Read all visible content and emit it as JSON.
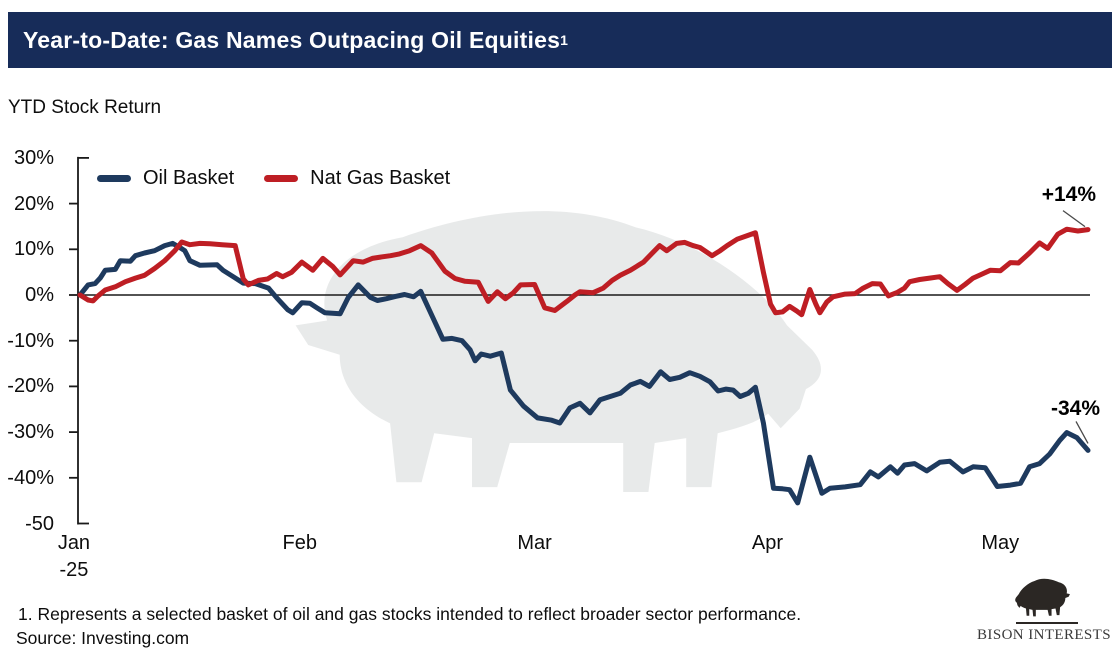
{
  "header": {
    "title": "Year-to-Date: Gas Names Outpacing Oil Equities",
    "superscript": "1",
    "bg_color": "#172c59"
  },
  "subtitle": "YTD Stock Return",
  "footnotes": [
    "1. Represents a selected basket of oil and gas stocks intended to reflect broader sector performance.",
    "Source: Investing.com"
  ],
  "logo": {
    "name": "BISON INTERESTS",
    "icon": "bison-icon"
  },
  "chart_data": {
    "type": "line",
    "title": "YTD Stock Return",
    "xlabel": "",
    "ylabel": "YTD Stock Return (%)",
    "ylim": [
      -50,
      30
    ],
    "grid": false,
    "legend_position": "top-left",
    "y_axis": {
      "ticks": [
        {
          "v": 30,
          "label": "30%"
        },
        {
          "v": 20,
          "label": "20%"
        },
        {
          "v": 10,
          "label": "10%"
        },
        {
          "v": 0,
          "label": "0%"
        },
        {
          "v": -10,
          "label": "-10%"
        },
        {
          "v": -20,
          "label": "-20%"
        },
        {
          "v": -30,
          "label": "-30%"
        },
        {
          "v": -40,
          "label": "-40%"
        },
        {
          "v": -50,
          "label": "-50"
        }
      ]
    },
    "x_axis": {
      "unit": "fraction of Jan 2 2025 to mid-May 2025",
      "ticks": [
        {
          "label": "Jan",
          "sub": "-25",
          "f": -0.006
        },
        {
          "label": "Feb",
          "f": 0.218
        },
        {
          "label": "Mar",
          "f": 0.451
        },
        {
          "label": "Apr",
          "f": 0.682
        },
        {
          "label": "May",
          "f": 0.913
        }
      ]
    },
    "series": [
      {
        "name": "Oil Basket",
        "color": "#1e3a5e",
        "end_label": "-34%",
        "points": [
          [
            0,
            0
          ],
          [
            0.008,
            2.2
          ],
          [
            0.015,
            2.5
          ],
          [
            0.02,
            3.7
          ],
          [
            0.025,
            5.4
          ],
          [
            0.035,
            5.6
          ],
          [
            0.04,
            7.5
          ],
          [
            0.05,
            7.4
          ],
          [
            0.055,
            8.6
          ],
          [
            0.064,
            9.2
          ],
          [
            0.074,
            9.7
          ],
          [
            0.084,
            10.8
          ],
          [
            0.092,
            11.3
          ],
          [
            0.099,
            10.4
          ],
          [
            0.104,
            9.7
          ],
          [
            0.109,
            7.5
          ],
          [
            0.119,
            6.5
          ],
          [
            0.136,
            6.6
          ],
          [
            0.142,
            5.4
          ],
          [
            0.152,
            4.0
          ],
          [
            0.162,
            2.6
          ],
          [
            0.174,
            2.5
          ],
          [
            0.187,
            1.5
          ],
          [
            0.195,
            -0.6
          ],
          [
            0.206,
            -3.2
          ],
          [
            0.211,
            -3.9
          ],
          [
            0.22,
            -1.7
          ],
          [
            0.228,
            -1.8
          ],
          [
            0.235,
            -2.8
          ],
          [
            0.243,
            -3.9
          ],
          [
            0.258,
            -4.1
          ],
          [
            0.266,
            -0.6
          ],
          [
            0.276,
            2.2
          ],
          [
            0.288,
            -0.5
          ],
          [
            0.295,
            -1.2
          ],
          [
            0.304,
            -0.8
          ],
          [
            0.313,
            -0.3
          ],
          [
            0.322,
            0.1
          ],
          [
            0.331,
            -0.4
          ],
          [
            0.338,
            0.8
          ],
          [
            0.347,
            -3.5
          ],
          [
            0.36,
            -9.7
          ],
          [
            0.369,
            -9.5
          ],
          [
            0.379,
            -10.0
          ],
          [
            0.387,
            -12.0
          ],
          [
            0.392,
            -14.4
          ],
          [
            0.398,
            -12.9
          ],
          [
            0.407,
            -13.4
          ],
          [
            0.418,
            -12.7
          ],
          [
            0.427,
            -20.8
          ],
          [
            0.44,
            -24.3
          ],
          [
            0.454,
            -26.9
          ],
          [
            0.468,
            -27.4
          ],
          [
            0.476,
            -28.0
          ],
          [
            0.486,
            -24.7
          ],
          [
            0.496,
            -23.7
          ],
          [
            0.506,
            -25.8
          ],
          [
            0.516,
            -22.9
          ],
          [
            0.526,
            -22.2
          ],
          [
            0.536,
            -21.5
          ],
          [
            0.546,
            -19.7
          ],
          [
            0.556,
            -18.9
          ],
          [
            0.565,
            -20.0
          ],
          [
            0.576,
            -16.8
          ],
          [
            0.585,
            -18.5
          ],
          [
            0.595,
            -18.0
          ],
          [
            0.605,
            -17.0
          ],
          [
            0.615,
            -17.8
          ],
          [
            0.625,
            -19.0
          ],
          [
            0.633,
            -21.0
          ],
          [
            0.641,
            -20.6
          ],
          [
            0.648,
            -20.8
          ],
          [
            0.655,
            -22.2
          ],
          [
            0.663,
            -21.5
          ],
          [
            0.67,
            -20.2
          ],
          [
            0.678,
            -28.0
          ],
          [
            0.688,
            -42.3
          ],
          [
            0.697,
            -42.4
          ],
          [
            0.704,
            -42.6
          ],
          [
            0.712,
            -45.5
          ],
          [
            0.724,
            -35.5
          ],
          [
            0.736,
            -43.4
          ],
          [
            0.744,
            -42.3
          ],
          [
            0.759,
            -42.0
          ],
          [
            0.774,
            -41.5
          ],
          [
            0.784,
            -38.7
          ],
          [
            0.792,
            -39.8
          ],
          [
            0.804,
            -37.6
          ],
          [
            0.811,
            -39.0
          ],
          [
            0.818,
            -37.2
          ],
          [
            0.828,
            -36.9
          ],
          [
            0.84,
            -38.5
          ],
          [
            0.853,
            -36.6
          ],
          [
            0.863,
            -36.4
          ],
          [
            0.876,
            -38.7
          ],
          [
            0.886,
            -37.6
          ],
          [
            0.898,
            -37.8
          ],
          [
            0.91,
            -41.9
          ],
          [
            0.923,
            -41.6
          ],
          [
            0.933,
            -41.2
          ],
          [
            0.942,
            -37.6
          ],
          [
            0.952,
            -36.9
          ],
          [
            0.962,
            -34.8
          ],
          [
            0.972,
            -31.8
          ],
          [
            0.979,
            -30.1
          ],
          [
            0.989,
            -31.2
          ],
          [
            1.0,
            -34.0
          ]
        ]
      },
      {
        "name": "Nat Gas Basket",
        "color": "#be1e24",
        "end_label": "+14%",
        "points": [
          [
            0,
            0
          ],
          [
            0.008,
            -1.1
          ],
          [
            0.013,
            -1.3
          ],
          [
            0.018,
            -0.2
          ],
          [
            0.025,
            1.1
          ],
          [
            0.035,
            1.8
          ],
          [
            0.045,
            2.9
          ],
          [
            0.055,
            3.7
          ],
          [
            0.064,
            4.3
          ],
          [
            0.074,
            5.8
          ],
          [
            0.084,
            7.5
          ],
          [
            0.094,
            9.7
          ],
          [
            0.101,
            11.6
          ],
          [
            0.109,
            11.0
          ],
          [
            0.119,
            11.3
          ],
          [
            0.129,
            11.2
          ],
          [
            0.141,
            11.0
          ],
          [
            0.154,
            10.8
          ],
          [
            0.162,
            3.5
          ],
          [
            0.167,
            2.2
          ],
          [
            0.177,
            3.2
          ],
          [
            0.186,
            3.5
          ],
          [
            0.195,
            4.7
          ],
          [
            0.201,
            4.0
          ],
          [
            0.21,
            5.0
          ],
          [
            0.22,
            7.2
          ],
          [
            0.231,
            5.4
          ],
          [
            0.241,
            8.0
          ],
          [
            0.251,
            6.2
          ],
          [
            0.258,
            4.4
          ],
          [
            0.271,
            7.5
          ],
          [
            0.281,
            7.2
          ],
          [
            0.29,
            8.0
          ],
          [
            0.298,
            8.3
          ],
          [
            0.308,
            8.6
          ],
          [
            0.317,
            9.0
          ],
          [
            0.327,
            9.7
          ],
          [
            0.338,
            10.8
          ],
          [
            0.349,
            9.2
          ],
          [
            0.362,
            5.2
          ],
          [
            0.372,
            3.6
          ],
          [
            0.382,
            3.0
          ],
          [
            0.395,
            2.8
          ],
          [
            0.405,
            -1.4
          ],
          [
            0.414,
            0.7
          ],
          [
            0.422,
            -0.8
          ],
          [
            0.43,
            0.5
          ],
          [
            0.437,
            2.2
          ],
          [
            0.451,
            2.3
          ],
          [
            0.461,
            -2.8
          ],
          [
            0.471,
            -3.4
          ],
          [
            0.483,
            -1.4
          ],
          [
            0.491,
            0.0
          ],
          [
            0.496,
            0.7
          ],
          [
            0.509,
            0.5
          ],
          [
            0.519,
            1.5
          ],
          [
            0.528,
            3.2
          ],
          [
            0.536,
            4.3
          ],
          [
            0.546,
            5.4
          ],
          [
            0.554,
            6.5
          ],
          [
            0.559,
            7.2
          ],
          [
            0.567,
            9.0
          ],
          [
            0.575,
            10.8
          ],
          [
            0.582,
            9.7
          ],
          [
            0.592,
            11.3
          ],
          [
            0.6,
            11.5
          ],
          [
            0.608,
            10.8
          ],
          [
            0.615,
            10.4
          ],
          [
            0.627,
            8.6
          ],
          [
            0.635,
            9.7
          ],
          [
            0.642,
            10.8
          ],
          [
            0.652,
            12.2
          ],
          [
            0.662,
            13.0
          ],
          [
            0.67,
            13.6
          ],
          [
            0.678,
            5.0
          ],
          [
            0.685,
            -2.0
          ],
          [
            0.69,
            -3.9
          ],
          [
            0.697,
            -3.7
          ],
          [
            0.704,
            -2.5
          ],
          [
            0.711,
            -3.5
          ],
          [
            0.716,
            -4.3
          ],
          [
            0.724,
            1.2
          ],
          [
            0.73,
            -2.0
          ],
          [
            0.734,
            -3.9
          ],
          [
            0.741,
            -1.5
          ],
          [
            0.747,
            -0.4
          ],
          [
            0.759,
            0.2
          ],
          [
            0.769,
            0.3
          ],
          [
            0.777,
            1.5
          ],
          [
            0.786,
            2.5
          ],
          [
            0.794,
            2.4
          ],
          [
            0.802,
            -0.2
          ],
          [
            0.811,
            0.6
          ],
          [
            0.818,
            1.5
          ],
          [
            0.823,
            2.9
          ],
          [
            0.833,
            3.4
          ],
          [
            0.843,
            3.7
          ],
          [
            0.853,
            4.0
          ],
          [
            0.861,
            2.5
          ],
          [
            0.87,
            1.0
          ],
          [
            0.878,
            2.3
          ],
          [
            0.886,
            3.7
          ],
          [
            0.895,
            4.6
          ],
          [
            0.903,
            5.4
          ],
          [
            0.913,
            5.3
          ],
          [
            0.923,
            7.1
          ],
          [
            0.931,
            7.0
          ],
          [
            0.942,
            9.2
          ],
          [
            0.952,
            11.4
          ],
          [
            0.96,
            10.2
          ],
          [
            0.97,
            13.3
          ],
          [
            0.979,
            14.4
          ],
          [
            0.99,
            14.0
          ],
          [
            1.0,
            14.3
          ]
        ]
      }
    ]
  }
}
